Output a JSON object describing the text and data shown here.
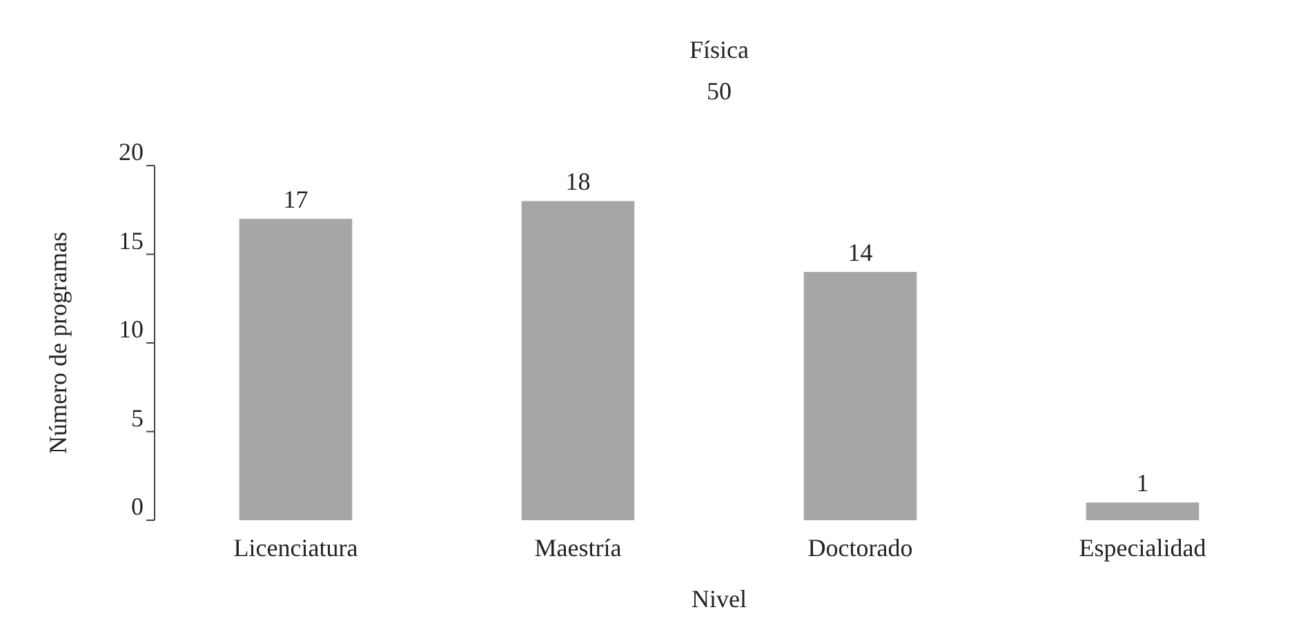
{
  "chart_data": {
    "type": "bar",
    "title": "Física",
    "subtitle": "50",
    "xlabel": "Nivel",
    "ylabel": "Número de programas",
    "categories": [
      "Licenciatura",
      "Maestría",
      "Doctorado",
      "Especialidad"
    ],
    "values": [
      17,
      18,
      14,
      1
    ],
    "color": "#a6a6a6",
    "ylim": [
      0,
      20
    ],
    "yticks": [
      0,
      5,
      10,
      15,
      20
    ],
    "data_labels": true
  }
}
